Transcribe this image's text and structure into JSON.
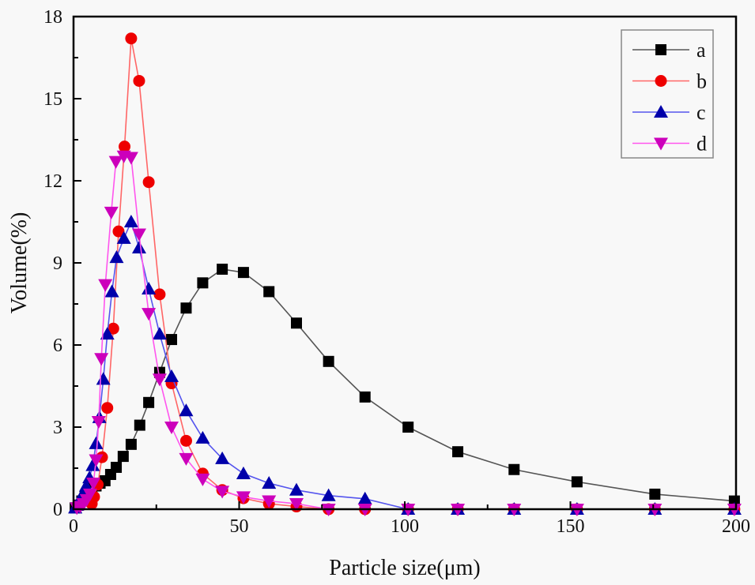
{
  "chart_data": {
    "type": "line",
    "title": "",
    "xlabel": "Particle size(μm)",
    "ylabel": "Volume(%)",
    "xlim": [
      0,
      200
    ],
    "ylim": [
      0,
      18
    ],
    "xticks": [
      0,
      50,
      100,
      150,
      200
    ],
    "xtick_labels": [
      "0",
      "50",
      "100",
      "150",
      "200"
    ],
    "yticks": [
      0,
      3,
      6,
      9,
      12,
      15,
      18
    ],
    "ytick_labels": [
      "0",
      "3",
      "6",
      "9",
      "12",
      "15",
      "18"
    ],
    "grid": false,
    "legend_position": "top-right",
    "series": [
      {
        "name": "a",
        "marker": "square",
        "color": "#000000",
        "line_color": "#555555",
        "x": [
          0.5,
          1.5,
          2.5,
          3.5,
          4.5,
          5.5,
          6.8,
          8,
          9.5,
          11.2,
          12.9,
          15,
          17.4,
          20,
          22.7,
          26,
          29.6,
          34,
          39,
          44.9,
          51.3,
          59,
          67.3,
          77,
          88,
          101,
          116,
          133,
          152,
          175.5,
          199.5
        ],
        "y": [
          0.05,
          0.15,
          0.3,
          0.45,
          0.6,
          0.75,
          0.85,
          0.95,
          1.04,
          1.27,
          1.53,
          1.93,
          2.37,
          3.07,
          3.9,
          5.0,
          6.2,
          7.35,
          8.27,
          8.77,
          8.65,
          7.95,
          6.8,
          5.4,
          4.1,
          3.0,
          2.1,
          1.45,
          1.0,
          0.55,
          0.3
        ]
      },
      {
        "name": "b",
        "marker": "circle",
        "color": "#ee0000",
        "line_color": "#ff6666",
        "x": [
          5.5,
          6.2,
          7.3,
          8.6,
          10.2,
          12,
          13.6,
          15.4,
          17.4,
          19.8,
          22.7,
          26,
          29.6,
          34,
          39,
          44.9,
          51.3,
          59,
          67.3,
          77,
          88,
          101,
          116,
          133,
          152,
          175.5,
          199.5
        ],
        "y": [
          0.2,
          0.45,
          0.9,
          1.9,
          3.7,
          6.6,
          10.15,
          13.25,
          17.2,
          15.65,
          11.95,
          7.85,
          4.6,
          2.5,
          1.3,
          0.7,
          0.4,
          0.2,
          0.1,
          0,
          0,
          0,
          0,
          0,
          0,
          0,
          0
        ]
      },
      {
        "name": "c",
        "marker": "triangle-up",
        "color": "#0000aa",
        "line_color": "#5555ee",
        "x": [
          0.5,
          1,
          1.5,
          2.2,
          3,
          3.8,
          4.8,
          5.8,
          6.8,
          7.8,
          9,
          10.2,
          11.6,
          13,
          15.2,
          17.4,
          19.8,
          22.7,
          26,
          29.6,
          34,
          39,
          44.9,
          51.3,
          59,
          67.3,
          77,
          88,
          101,
          116,
          133,
          152,
          175.5,
          199.5
        ],
        "y": [
          0.05,
          0.15,
          0.25,
          0.4,
          0.6,
          0.85,
          1.15,
          1.6,
          2.4,
          3.35,
          4.75,
          6.4,
          7.95,
          9.2,
          9.9,
          10.5,
          9.55,
          8.05,
          6.4,
          4.85,
          3.6,
          2.6,
          1.85,
          1.3,
          0.95,
          0.7,
          0.5,
          0.38,
          0,
          0,
          0,
          0,
          0,
          0
        ]
      },
      {
        "name": "d",
        "marker": "triangle-down",
        "color": "#cc00bb",
        "line_color": "#ff55ee",
        "x": [
          1,
          2,
          3,
          4,
          5,
          6,
          6.8,
          7.6,
          8.4,
          9.6,
          11.4,
          12.8,
          15.2,
          17.4,
          19.8,
          22.7,
          26,
          29.6,
          34,
          39,
          44.9,
          51.3,
          59,
          67.3,
          77,
          88,
          101,
          116,
          133,
          152,
          175.5,
          199.5
        ],
        "y": [
          0.05,
          0.1,
          0.2,
          0.35,
          0.55,
          0.95,
          1.8,
          3.2,
          5.5,
          8.2,
          10.85,
          12.7,
          12.9,
          12.85,
          10.05,
          7.15,
          4.75,
          3.0,
          1.85,
          1.1,
          0.65,
          0.45,
          0.3,
          0.2,
          0,
          0,
          0,
          0,
          0,
          0,
          0,
          0
        ]
      }
    ]
  }
}
